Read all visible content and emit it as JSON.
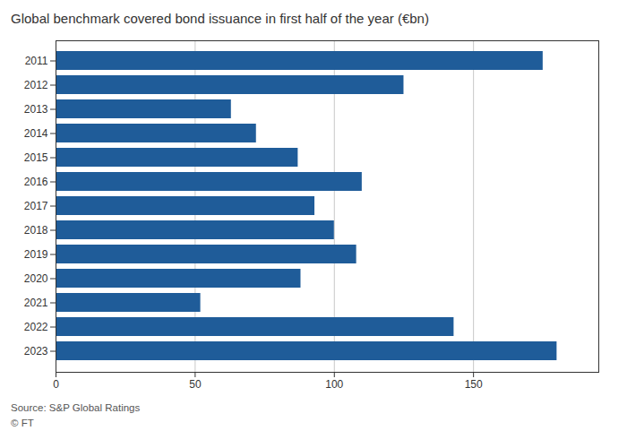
{
  "chart_data": {
    "type": "bar",
    "orientation": "horizontal",
    "title": "Global benchmark covered bond issuance in first half of the year (€bn)",
    "categories": [
      "2011",
      "2012",
      "2013",
      "2014",
      "2015",
      "2016",
      "2017",
      "2018",
      "2019",
      "2020",
      "2021",
      "2022",
      "2023"
    ],
    "values": [
      175,
      125,
      63,
      72,
      87,
      110,
      93,
      100,
      108,
      88,
      52,
      143,
      180
    ],
    "color": "#1f5c99",
    "xlim": [
      0,
      195
    ],
    "xticks": [
      0,
      50,
      100,
      150
    ],
    "grid": true,
    "annotations": [
      "Source: S&P Global Ratings",
      "© FT"
    ]
  }
}
